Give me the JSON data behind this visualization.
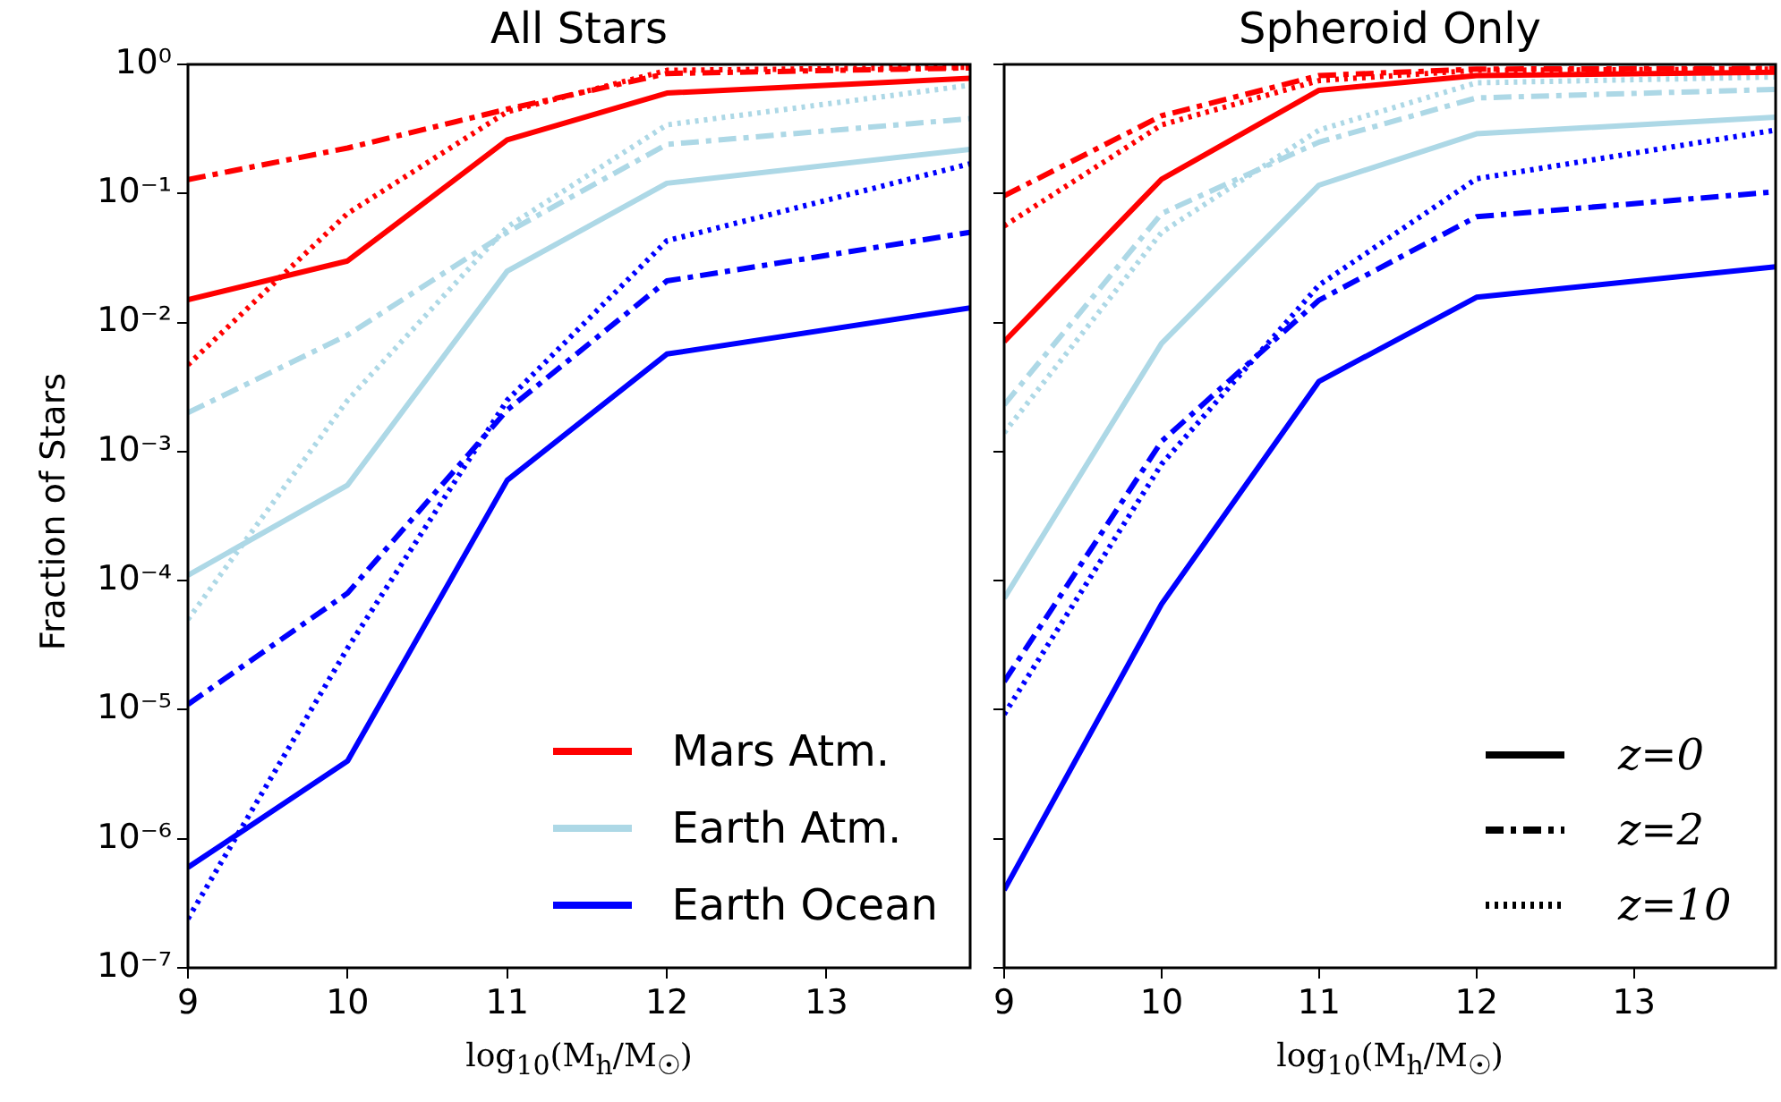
{
  "chart_data": [
    {
      "type": "line",
      "title": "All Stars",
      "ylabel": "Fraction of Stars",
      "xlabel": "log$_{10}$(M$_{h}$/M$_{☉}$)",
      "x": [
        9,
        10,
        11,
        12,
        13.9
      ],
      "xlim": [
        9,
        13.9
      ],
      "xticks": [
        9,
        10,
        11,
        12,
        13
      ],
      "log": "y",
      "ylim": [
        1e-07,
        1
      ],
      "yticks": [
        {
          "value": 1e-07,
          "label": "10⁻⁷"
        },
        {
          "value": 1e-06,
          "label": "10⁻⁶"
        },
        {
          "value": 1e-05,
          "label": "10⁻⁵"
        },
        {
          "value": 0.0001,
          "label": "10⁻⁴"
        },
        {
          "value": 0.001,
          "label": "10⁻³"
        },
        {
          "value": 0.01,
          "label": "10⁻²"
        },
        {
          "value": 0.1,
          "label": "10⁻¹"
        },
        {
          "value": 1,
          "label": "10⁰"
        }
      ],
      "grid": false,
      "legend": "bottom right",
      "series": [
        {
          "name": "Mars Atm.",
          "color": "#ff0000",
          "line_style": "solid",
          "values": [
            0.015,
            0.03,
            0.26,
            0.6,
            0.78
          ]
        },
        {
          "color": "#ff0000",
          "line_style": "dashed",
          "values": [
            0.128,
            0.225,
            0.45,
            0.85,
            0.94
          ]
        },
        {
          "color": "#ff0000",
          "line_style": "dotted",
          "values": [
            0.0047,
            0.07,
            0.43,
            0.9,
            0.95
          ]
        },
        {
          "name": "Earth Atm.",
          "color": "#add8e6",
          "line_style": "solid",
          "values": [
            0.00011,
            0.00055,
            0.025,
            0.12,
            0.22
          ]
        },
        {
          "color": "#add8e6",
          "line_style": "dashed",
          "values": [
            0.002,
            0.008,
            0.05,
            0.24,
            0.38
          ]
        },
        {
          "color": "#add8e6",
          "line_style": "dotted",
          "values": [
            5e-05,
            0.0025,
            0.055,
            0.34,
            0.69
          ]
        },
        {
          "name": "Earth Ocean",
          "color": "#0000ff",
          "line_style": "solid",
          "values": [
            6e-07,
            4e-06,
            0.0006,
            0.0057,
            0.013
          ]
        },
        {
          "color": "#0000ff",
          "line_style": "dashed",
          "values": [
            1.1e-05,
            8e-05,
            0.0021,
            0.021,
            0.05
          ]
        },
        {
          "color": "#0000ff",
          "line_style": "dotted",
          "values": [
            2.4e-07,
            3e-05,
            0.0025,
            0.043,
            0.17
          ]
        }
      ]
    },
    {
      "type": "line",
      "title": "Spheroid Only",
      "xlabel": "log$_{10}$(M$_{h}$/M$_{☉}$)",
      "x": [
        9,
        10,
        11,
        12,
        13.9
      ],
      "xlim": [
        9,
        13.9
      ],
      "xticks": [
        9,
        10,
        11,
        12,
        13
      ],
      "log": "y",
      "ylim": [
        1e-07,
        1
      ],
      "tick_labels": "x",
      "grid": false,
      "yticks": [
        {
          "value": 1e-07,
          "label": null
        },
        {
          "value": 1e-06,
          "label": null
        },
        {
          "value": 1e-05,
          "label": null
        },
        {
          "value": 0.0001,
          "label": null
        },
        {
          "value": 0.001,
          "label": null
        },
        {
          "value": 0.01,
          "label": null
        },
        {
          "value": 0.1,
          "label": null
        },
        {
          "value": 1,
          "label": null
        }
      ],
      "annotations": [
        "z=0",
        "z=2",
        "z=10"
      ],
      "series": [
        {
          "color": "#ff0000",
          "line_style": "solid",
          "values": [
            0.0071,
            0.129,
            0.63,
            0.82,
            0.87
          ]
        },
        {
          "color": "#ff0000",
          "line_style": "dashed",
          "values": [
            0.096,
            0.4,
            0.82,
            0.92,
            0.93
          ]
        },
        {
          "color": "#ff0000",
          "line_style": "dotted",
          "values": [
            0.056,
            0.34,
            0.75,
            0.9,
            0.92
          ]
        },
        {
          "color": "#add8e6",
          "line_style": "solid",
          "values": [
            7.3e-05,
            0.0069,
            0.116,
            0.29,
            0.39
          ]
        },
        {
          "color": "#add8e6",
          "line_style": "dashed",
          "values": [
            0.0023,
            0.07,
            0.25,
            0.55,
            0.64
          ]
        },
        {
          "color": "#add8e6",
          "line_style": "dotted",
          "values": [
            0.0014,
            0.05,
            0.31,
            0.72,
            0.8
          ]
        },
        {
          "color": "#0000ff",
          "line_style": "solid",
          "values": [
            4e-07,
            6.6e-05,
            0.0035,
            0.0157,
            0.027
          ]
        },
        {
          "color": "#0000ff",
          "line_style": "dashed",
          "values": [
            1.65e-05,
            0.0012,
            0.0149,
            0.066,
            0.103
          ]
        },
        {
          "color": "#0000ff",
          "line_style": "dotted",
          "values": [
            9.2e-06,
            0.0008,
            0.0195,
            0.13,
            0.31
          ]
        }
      ]
    }
  ]
}
